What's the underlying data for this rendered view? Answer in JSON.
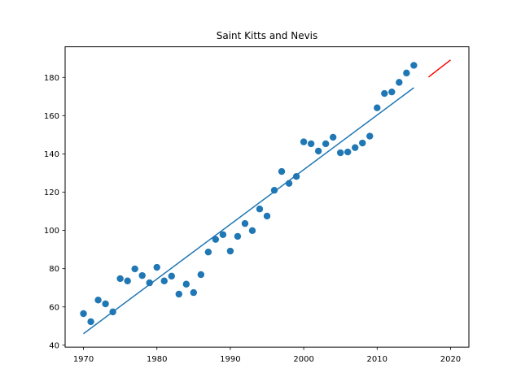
{
  "chart_data": {
    "type": "scatter",
    "title": "Saint Kitts and Nevis",
    "xlabel": "",
    "ylabel": "",
    "xlim": [
      1967.5,
      2022.5
    ],
    "ylim": [
      39,
      196
    ],
    "x_ticks": [
      1970,
      1980,
      1990,
      2000,
      2010,
      2020
    ],
    "y_ticks": [
      40,
      60,
      80,
      100,
      120,
      140,
      160,
      180
    ],
    "grid": false,
    "legend": "none",
    "series": [
      {
        "kind": "scatter",
        "color": "#1f77b4",
        "x": [
          1970,
          1971,
          1972,
          1973,
          1974,
          1975,
          1976,
          1977,
          1978,
          1979,
          1980,
          1981,
          1982,
          1983,
          1984,
          1985,
          1986,
          1987,
          1988,
          1989,
          1990,
          1991,
          1992,
          1993,
          1994,
          1995,
          1996,
          1997,
          1998,
          1999,
          2000,
          2001,
          2002,
          2003,
          2004,
          2005,
          2006,
          2007,
          2008,
          2009,
          2010,
          2011,
          2012,
          2013,
          2014,
          2015
        ],
        "y": [
          56.5,
          52.3,
          63.6,
          61.6,
          57.4,
          74.8,
          73.6,
          79.9,
          76.4,
          72.6,
          80.7,
          73.6,
          76.1,
          66.7,
          71.9,
          67.5,
          76.9,
          88.7,
          95.3,
          97.8,
          89.2,
          96.9,
          103.6,
          99.9,
          111.2,
          107.5,
          121.0,
          130.8,
          124.6,
          128.2,
          146.3,
          145.3,
          141.5,
          145.3,
          148.7,
          140.6,
          141.0,
          143.3,
          145.7,
          149.3,
          164.1,
          171.6,
          172.4,
          177.4,
          182.3,
          186.3
        ]
      },
      {
        "kind": "line",
        "color": "#1f77b4",
        "x": [
          1970,
          2015
        ],
        "y": [
          46.0,
          174.6
        ]
      },
      {
        "kind": "line",
        "color": "#ff0000",
        "x": [
          2017,
          2020
        ],
        "y": [
          180.2,
          189.1
        ]
      }
    ]
  }
}
